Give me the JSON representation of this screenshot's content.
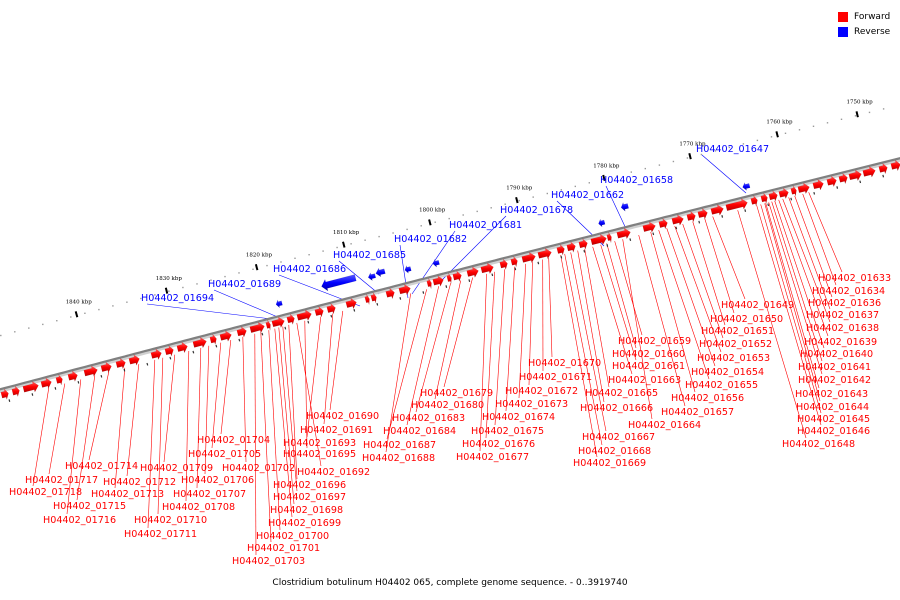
{
  "legend": [
    {
      "label": "Forward",
      "color": "#ff0000"
    },
    {
      "label": "Reverse",
      "color": "#0000ff"
    }
  ],
  "caption": "Clostridium botulinum H04402 065, complete genome sequence. - 0..3919740",
  "scale_ticks": [
    "1750 kbp",
    "1760 kbp",
    "1770 kbp",
    "1780 kbp",
    "1790 kbp",
    "1800 kbp",
    "1810 kbp",
    "1820 kbp",
    "1830 kbp",
    "1840 kbp"
  ],
  "reverse_labels": [
    "H04402_01647",
    "H04402_01658",
    "H04402_01662",
    "H04402_01678",
    "H04402_01681",
    "H04402_01682",
    "H04402_01685",
    "H04402_01686",
    "H04402_01689",
    "H04402_01694"
  ],
  "forward_labels": [
    "H04402_01633",
    "H04402_01634",
    "H04402_01636",
    "H04402_01637",
    "H04402_01638",
    "H04402_01639",
    "H04402_01640",
    "H04402_01641",
    "H04402_01642",
    "H04402_01643",
    "H04402_01644",
    "H04402_01645",
    "H04402_01646",
    "H04402_01648",
    "H04402_01649",
    "H04402_01650",
    "H04402_01651",
    "H04402_01652",
    "H04402_01653",
    "H04402_01654",
    "H04402_01655",
    "H04402_01656",
    "H04402_01657",
    "H04402_01659",
    "H04402_01660",
    "H04402_01661",
    "H04402_01663",
    "H04402_01665",
    "H04402_01666",
    "H04402_01664",
    "H04402_01667",
    "H04402_01668",
    "H04402_01669",
    "H04402_01670",
    "H04402_01671",
    "H04402_01672",
    "H04402_01673",
    "H04402_01674",
    "H04402_01675",
    "H04402_01676",
    "H04402_01677",
    "H04402_01679",
    "H04402_01680",
    "H04402_01683",
    "H04402_01684",
    "H04402_01687",
    "H04402_01688",
    "H04402_01690",
    "H04402_01691",
    "H04402_01693",
    "H04402_01695",
    "H04402_01692",
    "H04402_01696",
    "H04402_01697",
    "H04402_01698",
    "H04402_01699",
    "H04402_01700",
    "H04402_01701",
    "H04402_01703",
    "H04402_01704",
    "H04402_01705",
    "H04402_01702",
    "H04402_01706",
    "H04402_01707",
    "H04402_01708",
    "H04402_01709",
    "H04402_01710",
    "H04402_01711",
    "H04402_01712",
    "H04402_01713",
    "H04402_01714",
    "H04402_01715",
    "H04402_01716",
    "H04402_01717",
    "H04402_01718"
  ]
}
